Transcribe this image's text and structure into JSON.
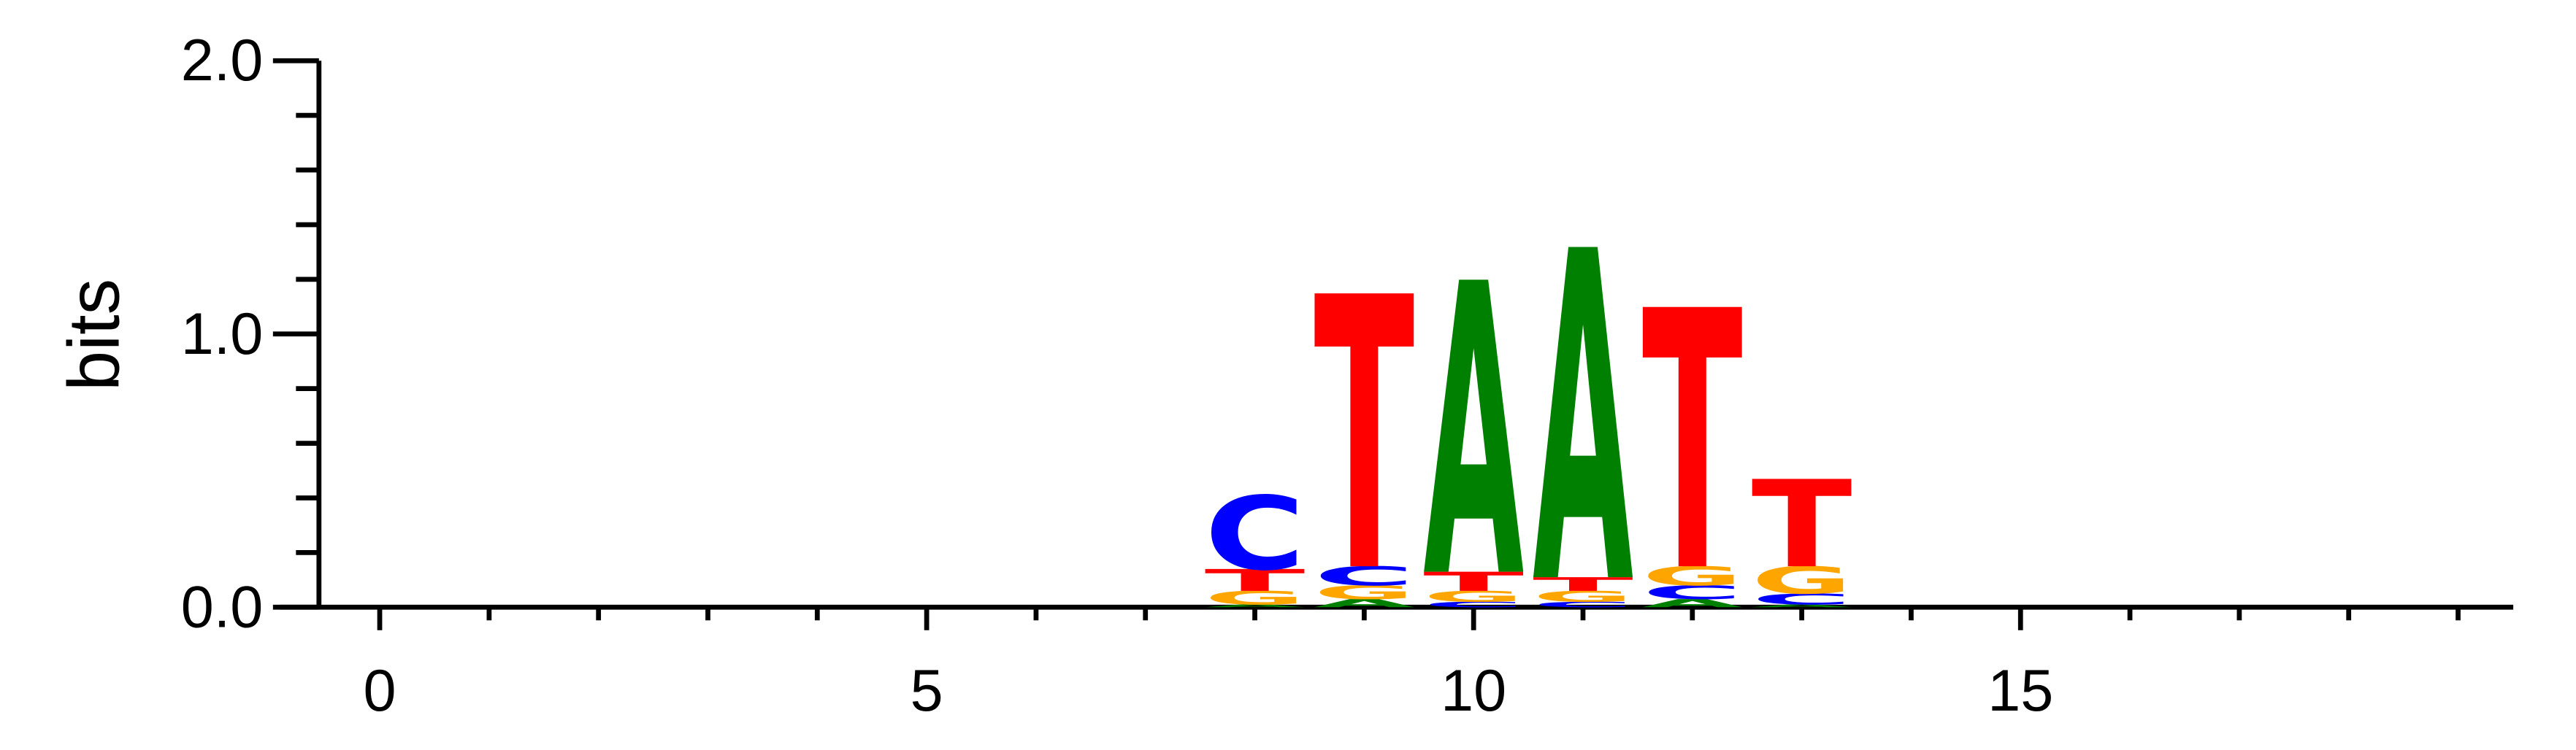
{
  "chart_data": {
    "type": "sequence-logo",
    "ylabel": "bits",
    "ylim": [
      0,
      2
    ],
    "y_ticks": [
      "0.0",
      "1.0",
      "2.0"
    ],
    "x_ticks": [
      "0",
      "5",
      "10",
      "15"
    ],
    "xlim": [
      -0.5,
      19
    ],
    "colors": {
      "A": "#008000",
      "C": "#0000ff",
      "G": "#ffa500",
      "T": "#ff0000"
    },
    "positions": [
      {
        "pos": 8,
        "letters": [
          {
            "base": "A",
            "bits": 0.01
          },
          {
            "base": "G",
            "bits": 0.05
          },
          {
            "base": "T",
            "bits": 0.08
          },
          {
            "base": "C",
            "bits": 0.27
          }
        ]
      },
      {
        "pos": 9,
        "letters": [
          {
            "base": "A",
            "bits": 0.03
          },
          {
            "base": "G",
            "bits": 0.05
          },
          {
            "base": "C",
            "bits": 0.07
          },
          {
            "base": "T",
            "bits": 1.0
          }
        ]
      },
      {
        "pos": 10,
        "letters": [
          {
            "base": "C",
            "bits": 0.02
          },
          {
            "base": "G",
            "bits": 0.04
          },
          {
            "base": "T",
            "bits": 0.07
          },
          {
            "base": "A",
            "bits": 1.07
          }
        ]
      },
      {
        "pos": 11,
        "letters": [
          {
            "base": "C",
            "bits": 0.02
          },
          {
            "base": "G",
            "bits": 0.04
          },
          {
            "base": "T",
            "bits": 0.05
          },
          {
            "base": "A",
            "bits": 1.21
          }
        ]
      },
      {
        "pos": 12,
        "letters": [
          {
            "base": "A",
            "bits": 0.03
          },
          {
            "base": "C",
            "bits": 0.05
          },
          {
            "base": "G",
            "bits": 0.07
          },
          {
            "base": "T",
            "bits": 0.95
          }
        ]
      },
      {
        "pos": 13,
        "letters": [
          {
            "base": "A",
            "bits": 0.01
          },
          {
            "base": "C",
            "bits": 0.04
          },
          {
            "base": "G",
            "bits": 0.1
          },
          {
            "base": "T",
            "bits": 0.32
          }
        ]
      }
    ]
  }
}
